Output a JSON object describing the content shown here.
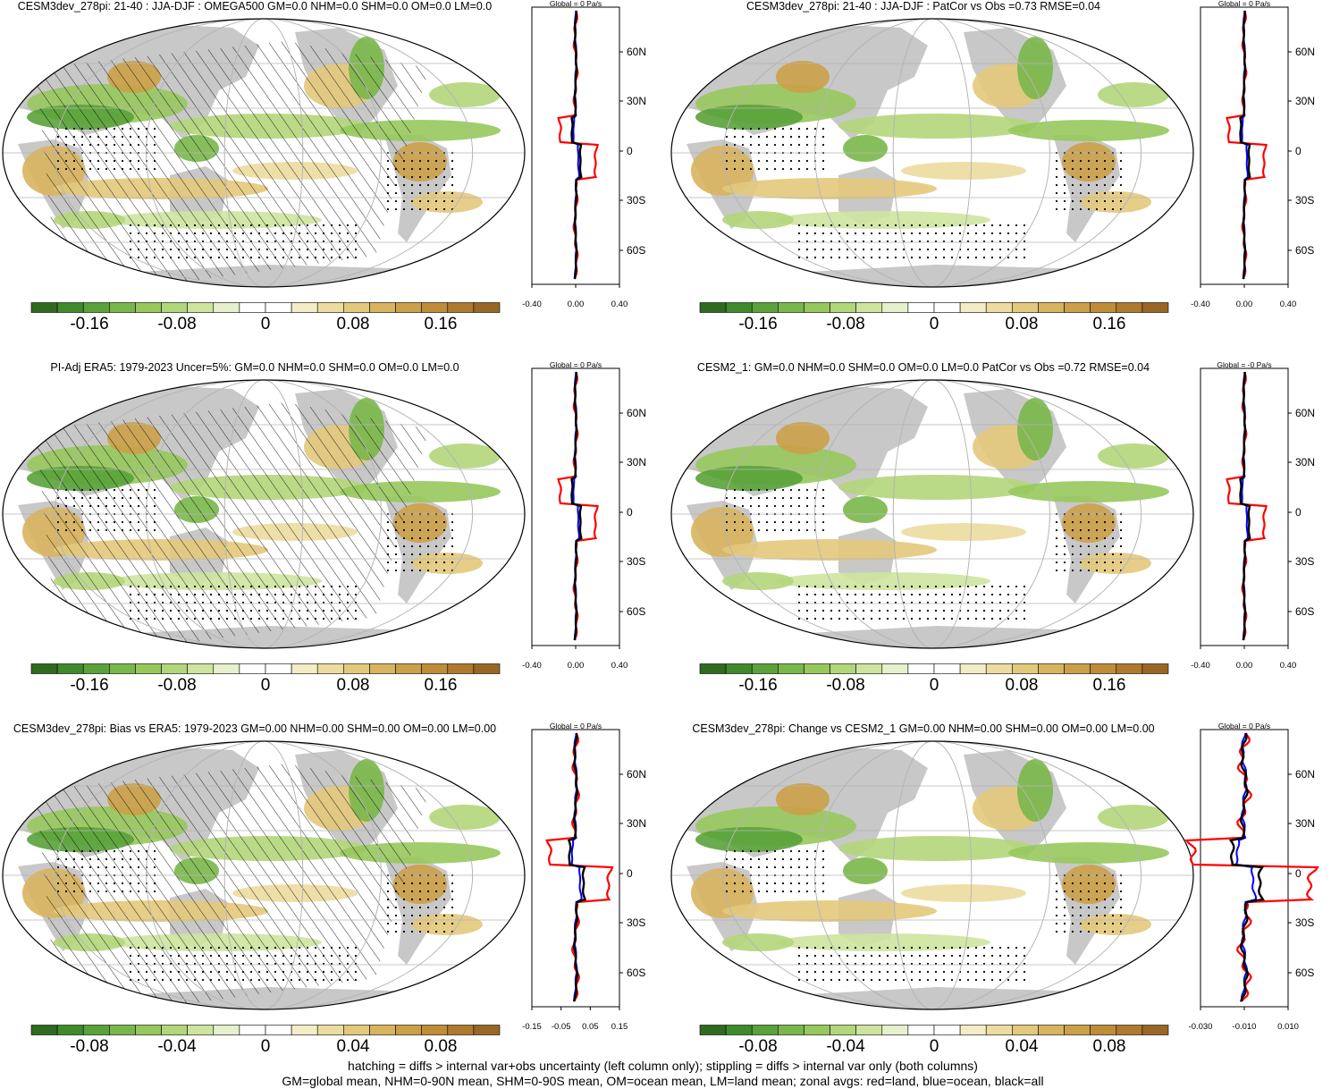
{
  "panels": [
    {
      "title": "CESM3dev_278pi: 21-40 : JJA-DJF : OMEGA500 GM=0.0 NHM=0.0 SHM=0.0 OM=0.0 LM=0.0",
      "zonal_title": "Global = 0 Pa/s",
      "lat_labels": [
        "60N",
        "30N",
        "0",
        "30S",
        "60S"
      ],
      "x_ticks": [
        "-0.40",
        "0.00",
        "0.40"
      ],
      "cbar_labels": [
        "-0.16",
        "-0.08",
        "0",
        "0.08",
        "0.16"
      ],
      "hatching": true
    },
    {
      "title": "CESM3dev_278pi: 21-40 : JJA-DJF : PatCor vs Obs =0.73 RMSE=0.04",
      "zonal_title": "Global = 0 Pa/s",
      "lat_labels": [
        "60N",
        "30N",
        "0",
        "30S",
        "60S"
      ],
      "x_ticks": [
        "-0.40",
        "0.00",
        "0.40"
      ],
      "cbar_labels": [
        "-0.16",
        "-0.08",
        "0",
        "0.08",
        "0.16"
      ],
      "hatching": false
    },
    {
      "title": "PI-Adj ERA5: 1979-2023 Uncer=5%: GM=0.0 NHM=0.0 SHM=0.0 OM=0.0 LM=0.0",
      "zonal_title": "Global = 0 Pa/s",
      "lat_labels": [
        "60N",
        "30N",
        "0",
        "30S",
        "60S"
      ],
      "x_ticks": [
        "-0.40",
        "0.00",
        "0.40"
      ],
      "cbar_labels": [
        "-0.16",
        "-0.08",
        "0",
        "0.08",
        "0.16"
      ],
      "hatching": true
    },
    {
      "title": "CESM2_1: GM=0.0 NHM=0.0 SHM=0.0 OM=0.0 LM=0.0 PatCor vs Obs =0.72 RMSE=0.04",
      "zonal_title": "Global = -0 Pa/s",
      "lat_labels": [
        "60N",
        "30N",
        "0",
        "30S",
        "60S"
      ],
      "x_ticks": [
        "-0.40",
        "0.00",
        "0.40"
      ],
      "cbar_labels": [
        "-0.16",
        "-0.08",
        "0",
        "0.08",
        "0.16"
      ],
      "hatching": false
    },
    {
      "title": "CESM3dev_278pi: Bias vs ERA5: 1979-2023 GM=0.00 NHM=0.00 SHM=0.00 OM=0.00 LM=0.00",
      "zonal_title": "Global = 0 Pa/s",
      "lat_labels": [
        "60N",
        "30N",
        "0",
        "30S",
        "60S"
      ],
      "x_ticks": [
        "-0.15",
        "-0.05",
        "0.05",
        "0.15"
      ],
      "cbar_labels": [
        "-0.08",
        "-0.04",
        "0",
        "0.04",
        "0.08"
      ],
      "hatching": true
    },
    {
      "title": "CESM3dev_278pi: Change vs CESM2_1 GM=0.00 NHM=0.00 SHM=0.00 OM=0.00 LM=0.00",
      "zonal_title": "Global = 0 Pa/s",
      "lat_labels": [
        "60N",
        "30N",
        "0",
        "30S",
        "60S"
      ],
      "x_ticks": [
        "-0.030",
        "-0.010",
        "0.010"
      ],
      "cbar_labels": [
        "-0.08",
        "-0.04",
        "0",
        "0.04",
        "0.08"
      ],
      "hatching": false
    }
  ],
  "colors": {
    "land_gray": "#c8c8c8",
    "green_scale": [
      "#2e6b1f",
      "#3f8a2a",
      "#5aa23a",
      "#79b74a",
      "#97c85c",
      "#b2d67a",
      "#cde49e",
      "#e6f0cc"
    ],
    "brown_scale": [
      "#f4ecc4",
      "#ecdca0",
      "#e3c97c",
      "#d8b45e",
      "#cca048",
      "#bf8c38",
      "#b07a2e",
      "#9a6624"
    ],
    "zonal_land": "#ff0000",
    "zonal_ocean": "#0000ff",
    "zonal_all": "#000000"
  },
  "footer": {
    "line1": "hatching = diffs > internal var+obs uncertainty (left column only); stippling = diffs > internal var only (both columns)",
    "line2": "GM=global mean, NHM=0-90N mean, SHM=0-90S mean, OM=ocean mean, LM=land mean; zonal avgs: red=land, blue=ocean, black=all"
  }
}
